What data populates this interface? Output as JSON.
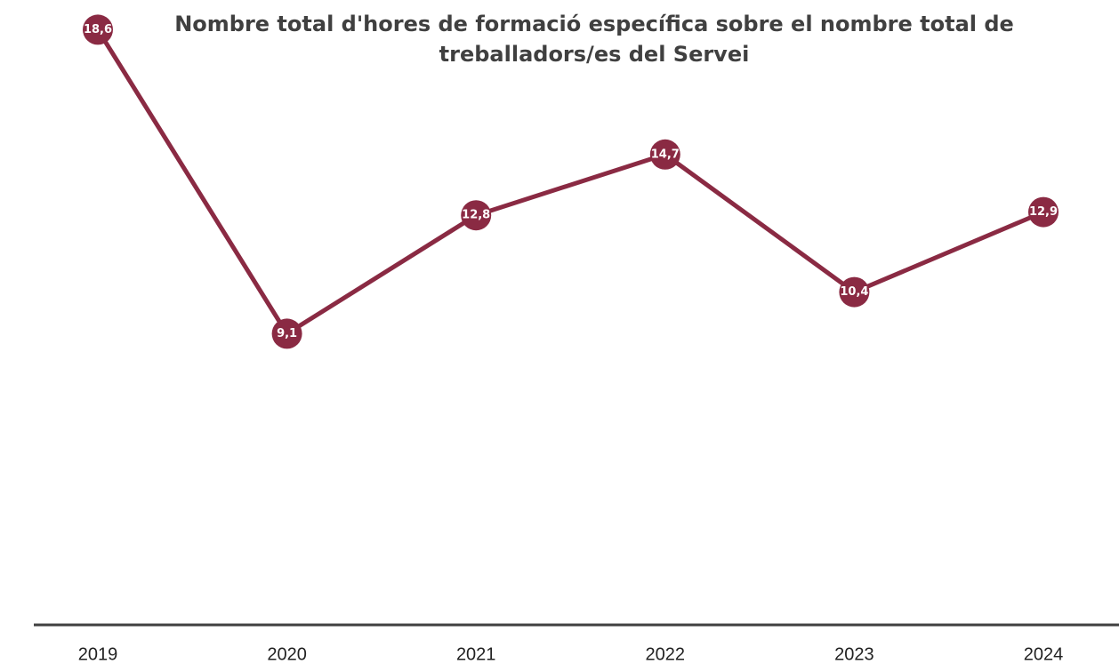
{
  "chart_data": {
    "type": "line",
    "title": "Nombre total d'hores de formació específica sobre el nombre total de treballadors/es del Servei",
    "categories": [
      "2019",
      "2020",
      "2021",
      "2022",
      "2023",
      "2024"
    ],
    "series": [
      {
        "color": "#8a2a43",
        "values": [
          18.6,
          9.1,
          12.8,
          14.7,
          10.4,
          12.9
        ],
        "value_labels": [
          "18,6",
          "9,1",
          "12,8",
          "14,7",
          "10,4",
          "12,9"
        ]
      }
    ],
    "ylim": [
      0,
      20
    ]
  }
}
